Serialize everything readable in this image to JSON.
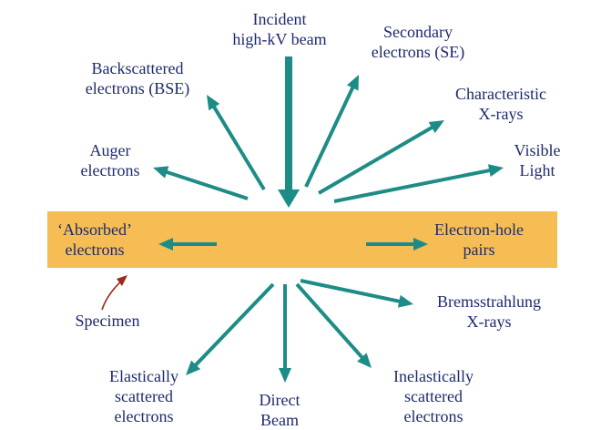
{
  "colors": {
    "arrow": "#1e8c86",
    "specimen_band": "#f5bd53",
    "text": "#1e2a6e",
    "pointer_arrow": "#9a2b1c"
  },
  "labels": {
    "incident_beam": [
      "Incident",
      "high-kV beam"
    ],
    "secondary_electrons": [
      "Secondary",
      "electrons (SE)"
    ],
    "backscattered_electrons": [
      "Backscattered",
      "electrons (BSE)"
    ],
    "characteristic_xrays": [
      "Characteristic",
      "X-rays"
    ],
    "auger_electrons": [
      "Auger",
      "electrons"
    ],
    "visible_light": [
      "Visible",
      "Light"
    ],
    "absorbed_electrons": [
      "‘Absorbed’",
      "electrons"
    ],
    "electron_hole_pairs": [
      "Electron-hole",
      "pairs"
    ],
    "specimen": "Specimen",
    "bremsstrahlung_xrays": [
      "Bremsstrahlung",
      "X-rays"
    ],
    "elastically_scattered": [
      "Elastically",
      "scattered",
      "electrons"
    ],
    "direct_beam": [
      "Direct",
      "Beam"
    ],
    "inelastically_scattered": [
      "Inelastically",
      "scattered",
      "electrons"
    ]
  }
}
